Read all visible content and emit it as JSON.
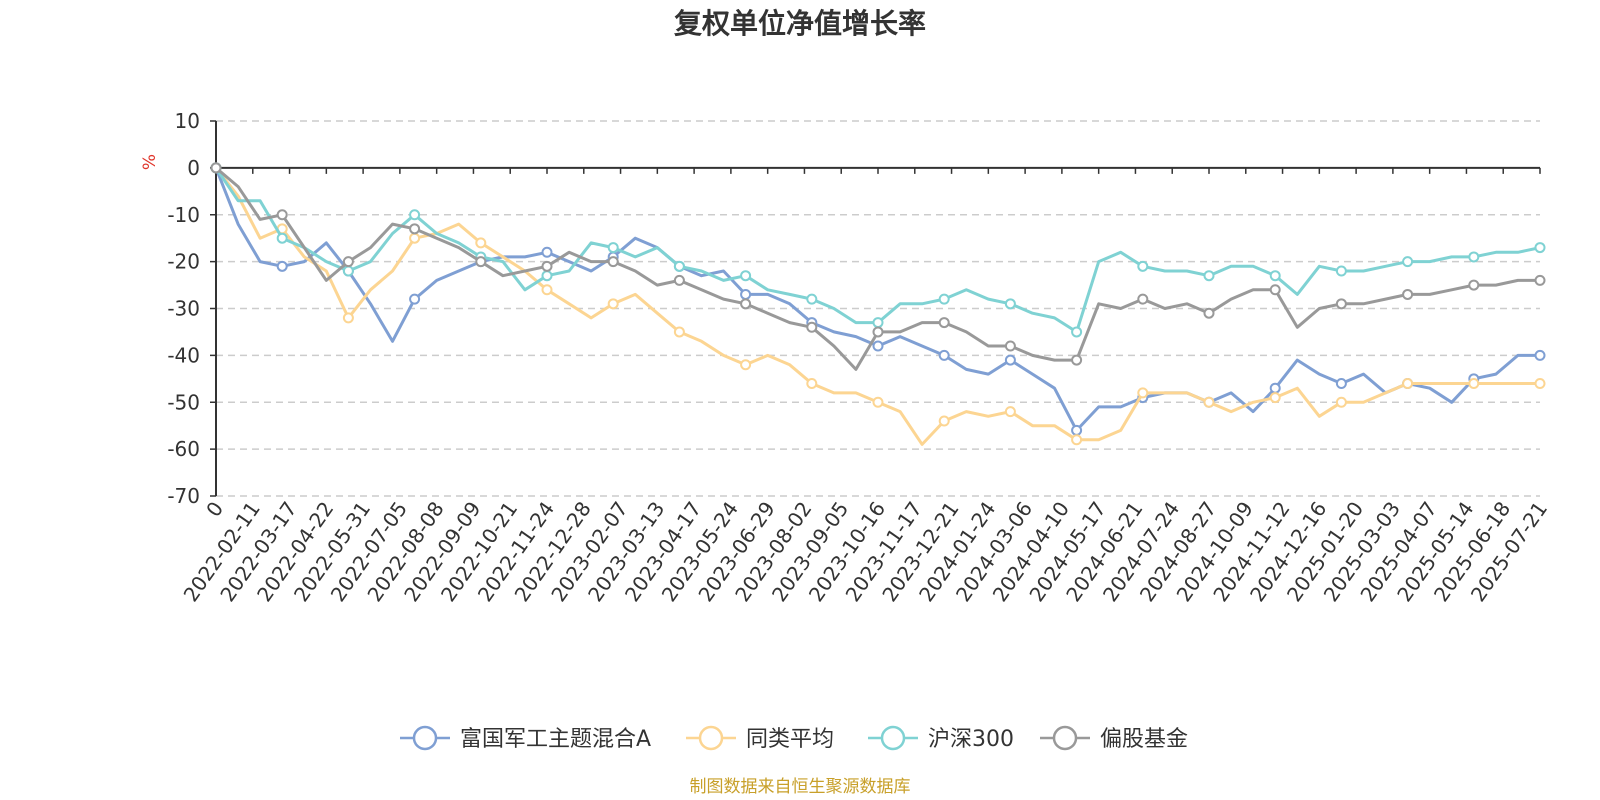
{
  "chart_data": {
    "type": "line",
    "title": "复权单位净值增长率",
    "ylabel": "%",
    "ylim": [
      -70,
      10
    ],
    "yticks": [
      10,
      0,
      -10,
      -20,
      -30,
      -40,
      -50,
      -60,
      -70
    ],
    "grid": true,
    "legend_position": "bottom",
    "source_note": "制图数据来自恒生聚源数据库",
    "x_ticks": [
      "0",
      "2022-02-11",
      "2022-03-17",
      "2022-04-22",
      "2022-05-31",
      "2022-07-05",
      "2022-08-08",
      "2022-09-09",
      "2022-10-21",
      "2022-11-24",
      "2022-12-28",
      "2023-02-07",
      "2023-03-13",
      "2023-04-17",
      "2023-05-24",
      "2023-06-29",
      "2023-08-02",
      "2023-09-05",
      "2023-10-16",
      "2023-11-17",
      "2023-12-21",
      "2024-01-24",
      "2024-03-06",
      "2024-04-10",
      "2024-05-17",
      "2024-06-21",
      "2024-07-24",
      "2024-08-27",
      "2024-10-09",
      "2024-11-12",
      "2024-12-16",
      "2025-01-20",
      "2025-03-03",
      "2025-04-07",
      "2025-05-14",
      "2025-06-18",
      "2025-07-21"
    ],
    "series": [
      {
        "name": "富国军工主题混合A",
        "color": "#7f9fd3",
        "values": [
          0,
          -12,
          -20,
          -21,
          -20,
          -16,
          -22,
          -29,
          -37,
          -28,
          -24,
          -22,
          -20,
          -19,
          -19,
          -18,
          -20,
          -22,
          -19,
          -15,
          -17,
          -21,
          -23,
          -22,
          -27,
          -27,
          -29,
          -33,
          -35,
          -36,
          -38,
          -36,
          -38,
          -40,
          -43,
          -44,
          -41,
          -44,
          -47,
          -56,
          -51,
          -51,
          -49,
          -48,
          -48,
          -50,
          -48,
          -52,
          -47,
          -41,
          -44,
          -46,
          -44,
          -48,
          -46,
          -47,
          -50,
          -45,
          -44,
          -40,
          -40
        ]
      },
      {
        "name": "同类平均",
        "color": "#fcd592",
        "values": [
          0,
          -6,
          -15,
          -13,
          -19,
          -22,
          -32,
          -26,
          -22,
          -15,
          -14,
          -12,
          -16,
          -19,
          -22,
          -26,
          -29,
          -32,
          -29,
          -27,
          -31,
          -35,
          -37,
          -40,
          -42,
          -40,
          -42,
          -46,
          -48,
          -48,
          -50,
          -52,
          -59,
          -54,
          -52,
          -53,
          -52,
          -55,
          -55,
          -58,
          -58,
          -56,
          -48,
          -48,
          -48,
          -50,
          -52,
          -50,
          -49,
          -47,
          -53,
          -50,
          -50,
          -48,
          -46,
          -46,
          -46,
          -46,
          -46,
          -46,
          -46
        ]
      },
      {
        "name": "沪深300",
        "color": "#7fd2d3",
        "values": [
          0,
          -7,
          -7,
          -15,
          -17,
          -20,
          -22,
          -20,
          -14,
          -10,
          -14,
          -16,
          -19,
          -20,
          -26,
          -23,
          -22,
          -16,
          -17,
          -19,
          -17,
          -21,
          -22,
          -24,
          -23,
          -26,
          -27,
          -28,
          -30,
          -33,
          -33,
          -29,
          -29,
          -28,
          -26,
          -28,
          -29,
          -31,
          -32,
          -35,
          -20,
          -18,
          -21,
          -22,
          -22,
          -23,
          -21,
          -21,
          -23,
          -27,
          -21,
          -22,
          -22,
          -21,
          -20,
          -20,
          -19,
          -19,
          -18,
          -18,
          -17
        ]
      },
      {
        "name": "偏股基金",
        "color": "#999999",
        "values": [
          0,
          -4,
          -11,
          -10,
          -17,
          -24,
          -20,
          -17,
          -12,
          -13,
          -15,
          -17,
          -20,
          -23,
          -22,
          -21,
          -18,
          -20,
          -20,
          -22,
          -25,
          -24,
          -26,
          -28,
          -29,
          -31,
          -33,
          -34,
          -38,
          -43,
          -35,
          -35,
          -33,
          -33,
          -35,
          -38,
          -38,
          -40,
          -41,
          -41,
          -29,
          -30,
          -28,
          -30,
          -29,
          -31,
          -28,
          -26,
          -26,
          -34,
          -30,
          -29,
          -29,
          -28,
          -27,
          -27,
          -26,
          -25,
          -25,
          -24,
          -24
        ]
      }
    ]
  }
}
